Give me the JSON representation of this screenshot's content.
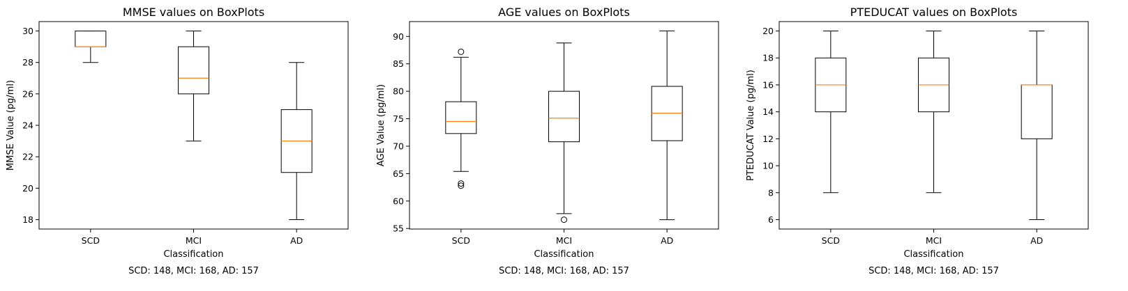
{
  "chart_data": [
    {
      "type": "box",
      "title": "MMSE values on BoxPlots",
      "xlabel": "Classification",
      "ylabel": "MMSE Value (pg/ml)",
      "categories": [
        "SCD",
        "MCI",
        "AD"
      ],
      "ylim": [
        17.4,
        30.6
      ],
      "yticks": [
        18,
        20,
        22,
        24,
        26,
        28,
        30
      ],
      "boxes": [
        {
          "whislo": 28,
          "q1": 29,
          "med": 29,
          "q3": 30,
          "whishi": 30,
          "fliers": []
        },
        {
          "whislo": 23,
          "q1": 26,
          "med": 27,
          "q3": 29,
          "whishi": 30,
          "fliers": []
        },
        {
          "whislo": 18,
          "q1": 21,
          "med": 23,
          "q3": 25,
          "whishi": 28,
          "fliers": []
        }
      ],
      "footnote": "SCD: 148, MCI: 168, AD: 157"
    },
    {
      "type": "box",
      "title": "AGE values on BoxPlots",
      "xlabel": "Classification",
      "ylabel": "AGE Value (pg/ml)",
      "categories": [
        "SCD",
        "MCI",
        "AD"
      ],
      "ylim": [
        54.9,
        92.7
      ],
      "yticks": [
        55,
        60,
        65,
        70,
        75,
        80,
        85,
        90
      ],
      "boxes": [
        {
          "whislo": 65.4,
          "q1": 72.3,
          "med": 74.5,
          "q3": 78.1,
          "whishi": 86.2,
          "fliers": [
            87.2,
            63.2,
            62.8
          ]
        },
        {
          "whislo": 57.7,
          "q1": 70.8,
          "med": 75.1,
          "q3": 80.0,
          "whishi": 88.8,
          "fliers": [
            56.6
          ]
        },
        {
          "whislo": 56.6,
          "q1": 71.0,
          "med": 76.0,
          "q3": 80.9,
          "whishi": 91.0,
          "fliers": []
        }
      ],
      "footnote": "SCD: 148, MCI: 168, AD: 157"
    },
    {
      "type": "box",
      "title": "PTEDUCAT values on BoxPlots",
      "xlabel": "Classification",
      "ylabel": "PTEDUCAT Value (pg/ml)",
      "categories": [
        "SCD",
        "MCI",
        "AD"
      ],
      "ylim": [
        5.3,
        20.7
      ],
      "yticks": [
        6,
        8,
        10,
        12,
        14,
        16,
        18,
        20
      ],
      "boxes": [
        {
          "whislo": 8,
          "q1": 14,
          "med": 16,
          "q3": 18,
          "whishi": 20,
          "fliers": []
        },
        {
          "whislo": 8,
          "q1": 14,
          "med": 16,
          "q3": 18,
          "whishi": 20,
          "fliers": []
        },
        {
          "whislo": 6,
          "q1": 12,
          "med": 16,
          "q3": 16,
          "whishi": 20,
          "fliers": []
        }
      ],
      "footnote": "SCD: 148, MCI: 168, AD: 157"
    }
  ],
  "colors": {
    "box": "#000000",
    "median": "#ff7f0e"
  }
}
